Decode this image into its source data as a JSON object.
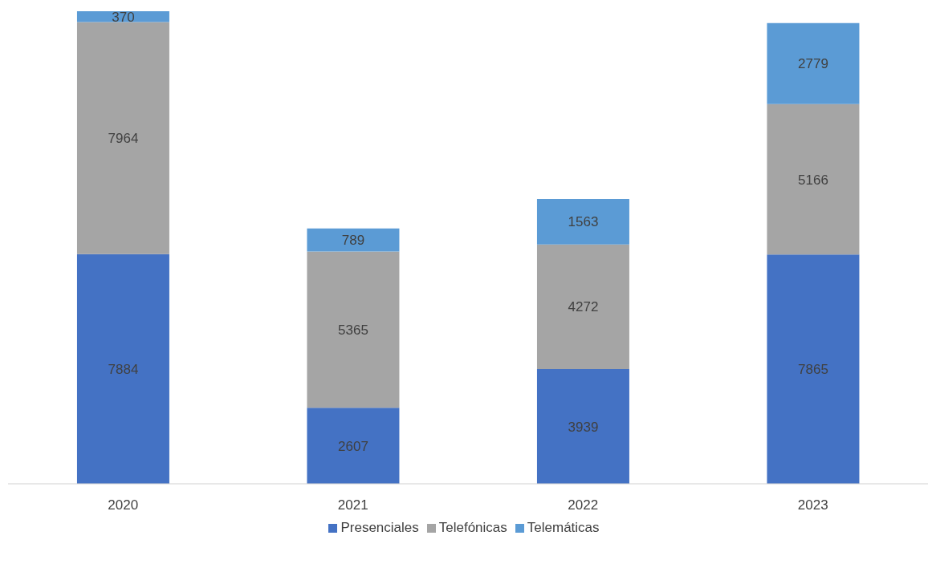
{
  "chart_data": {
    "type": "bar",
    "stacked": true,
    "data_labels": true,
    "legend": "bottom",
    "grid": false,
    "categories": [
      "2020",
      "2021",
      "2022",
      "2023"
    ],
    "series": [
      {
        "name": "Presenciales",
        "color": "#4472c4",
        "values": [
          7884,
          2607,
          3939,
          7865
        ]
      },
      {
        "name": "Telefónicas",
        "color": "#a5a5a5",
        "values": [
          7964,
          5365,
          4272,
          5166
        ]
      },
      {
        "name": "Telemáticas",
        "color": "#5b9bd5",
        "values": [
          370,
          789,
          1563,
          2779
        ]
      }
    ]
  }
}
